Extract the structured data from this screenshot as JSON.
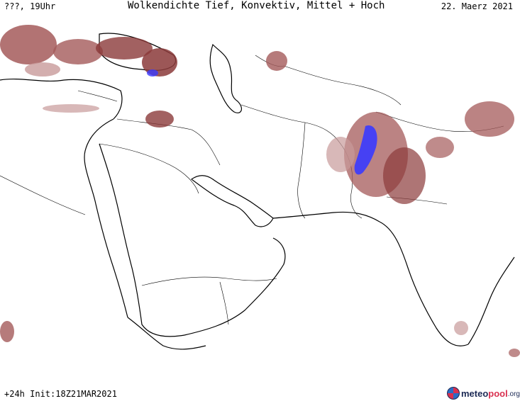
{
  "header": {
    "left": "???, 19Uhr",
    "title": "Wolkendichte  Tief, Konvektiv, Mittel + Hoch",
    "date": "22. Maerz 2021"
  },
  "footer": {
    "run": "+24h Init:18Z21MAR2021"
  },
  "logo": {
    "part1": "meteo",
    "part2": "pool",
    "part3": ".org"
  },
  "colors": {
    "cloud_dark": "#8b3a3a",
    "cloud_mid": "#a45a5a",
    "cloud_light": "#c89a9a",
    "cloud_dense": "#3a3aff",
    "coast": "#000000",
    "border": "#000000"
  }
}
